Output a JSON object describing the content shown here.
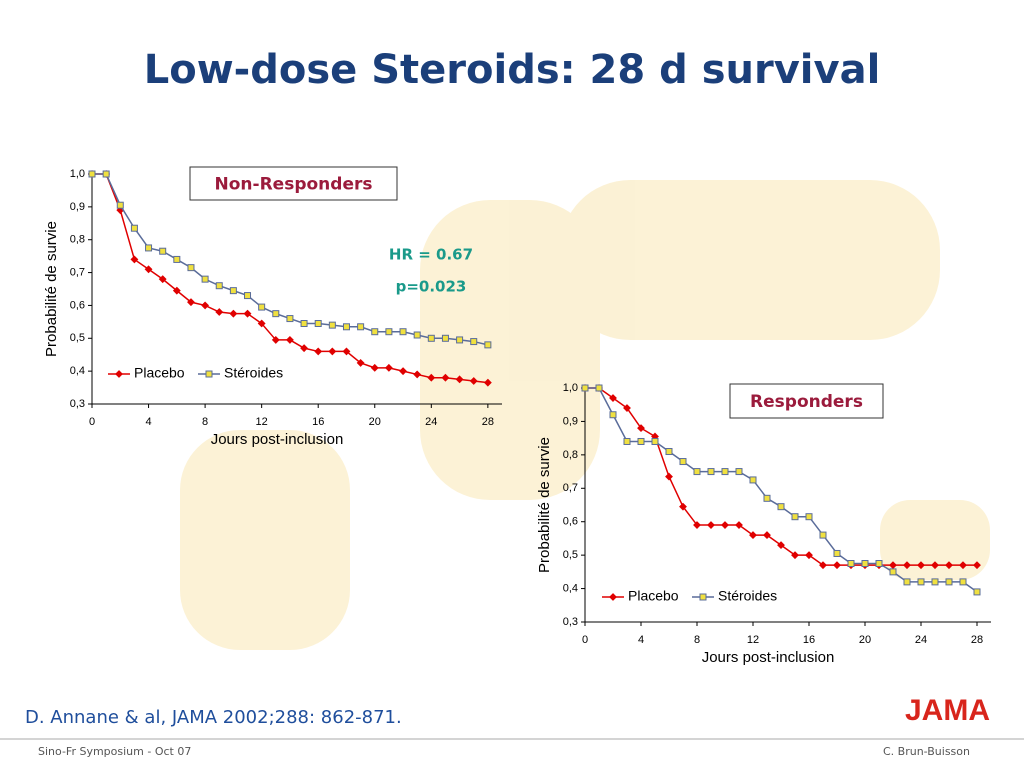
{
  "title": "Low-dose Steroids: 28 d survival",
  "chart_data": [
    {
      "type": "line",
      "title": "Non-Responders",
      "annotations": [
        "HR = 0.67",
        "p=0.023"
      ],
      "x_label": "Jours post-inclusion",
      "y_label": "Probabilité de survie",
      "x": [
        0,
        1,
        2,
        3,
        4,
        5,
        6,
        7,
        8,
        9,
        10,
        11,
        12,
        13,
        14,
        15,
        16,
        17,
        18,
        19,
        20,
        21,
        22,
        23,
        24,
        25,
        26,
        27,
        28
      ],
      "series": [
        {
          "name": "Placebo",
          "color": "#e00000",
          "marker": "diamond",
          "marker_color": "#e00000",
          "values": [
            1.0,
            1.0,
            0.89,
            0.74,
            0.71,
            0.68,
            0.645,
            0.61,
            0.6,
            0.58,
            0.575,
            0.575,
            0.545,
            0.495,
            0.495,
            0.47,
            0.46,
            0.46,
            0.46,
            0.425,
            0.41,
            0.41,
            0.4,
            0.39,
            0.38,
            0.38,
            0.375,
            0.37,
            0.365
          ]
        },
        {
          "name": "Stéroides",
          "color": "#5a6c9a",
          "marker": "square",
          "marker_color": "#f0e040",
          "values": [
            1.0,
            1.0,
            0.905,
            0.835,
            0.775,
            0.765,
            0.74,
            0.715,
            0.68,
            0.66,
            0.645,
            0.63,
            0.595,
            0.575,
            0.56,
            0.545,
            0.545,
            0.54,
            0.535,
            0.535,
            0.52,
            0.52,
            0.52,
            0.51,
            0.5,
            0.5,
            0.495,
            0.49,
            0.48
          ]
        }
      ],
      "xlim": [
        0,
        29
      ],
      "xticks": [
        0,
        4,
        8,
        12,
        16,
        20,
        24,
        28
      ],
      "ylim": [
        0.3,
        1.0
      ],
      "yticks": [
        {
          "value": 0.3,
          "label": "0,3"
        },
        {
          "value": 0.4,
          "label": "0,4"
        },
        {
          "value": 0.5,
          "label": "0,5"
        },
        {
          "value": 0.6,
          "label": "0,6"
        },
        {
          "value": 0.7,
          "label": "0,7"
        },
        {
          "value": 0.8,
          "label": "0,8"
        },
        {
          "value": 0.9,
          "label": "0,9"
        },
        {
          "value": 1.0,
          "label": "1,0"
        }
      ],
      "legend": "lower left"
    },
    {
      "type": "line",
      "title": "Responders",
      "x_label": "Jours post-inclusion",
      "y_label": "Probabilité de survie",
      "x": [
        0,
        1,
        2,
        3,
        4,
        5,
        6,
        7,
        8,
        9,
        10,
        11,
        12,
        13,
        14,
        15,
        16,
        17,
        18,
        19,
        20,
        21,
        22,
        23,
        24,
        25,
        26,
        27,
        28
      ],
      "series": [
        {
          "name": "Placebo",
          "color": "#e00000",
          "marker": "diamond",
          "marker_color": "#e00000",
          "values": [
            1.0,
            1.0,
            0.97,
            0.94,
            0.88,
            0.855,
            0.735,
            0.645,
            0.59,
            0.59,
            0.59,
            0.59,
            0.56,
            0.56,
            0.53,
            0.5,
            0.5,
            0.47,
            0.47,
            0.47,
            0.47,
            0.47,
            0.47,
            0.47,
            0.47,
            0.47,
            0.47,
            0.47,
            0.47
          ]
        },
        {
          "name": "Stéroides",
          "color": "#5a6c9a",
          "marker": "square",
          "marker_color": "#f0e040",
          "values": [
            1.0,
            1.0,
            0.92,
            0.84,
            0.84,
            0.84,
            0.81,
            0.78,
            0.75,
            0.75,
            0.75,
            0.75,
            0.725,
            0.67,
            0.645,
            0.615,
            0.615,
            0.56,
            0.505,
            0.475,
            0.475,
            0.475,
            0.45,
            0.42,
            0.42,
            0.42,
            0.42,
            0.42,
            0.39
          ]
        }
      ],
      "xlim": [
        0,
        29
      ],
      "xticks": [
        0,
        4,
        8,
        12,
        16,
        20,
        24,
        28
      ],
      "ylim": [
        0.3,
        1.0
      ],
      "yticks": [
        {
          "value": 0.3,
          "label": "0,3"
        },
        {
          "value": 0.4,
          "label": "0,4"
        },
        {
          "value": 0.5,
          "label": "0,5"
        },
        {
          "value": 0.6,
          "label": "0,6"
        },
        {
          "value": 0.7,
          "label": "0,7"
        },
        {
          "value": 0.8,
          "label": "0,8"
        },
        {
          "value": 0.9,
          "label": "0,9"
        },
        {
          "value": 1.0,
          "label": "1,0"
        }
      ],
      "legend": "lower left"
    }
  ],
  "citation": "D. Annane & al, JAMA 2002;288: 862-871.",
  "logo": "JAMA",
  "footer_left": "Sino-Fr Symposium - Oct  07",
  "footer_right": "C. Brun-Buisson"
}
